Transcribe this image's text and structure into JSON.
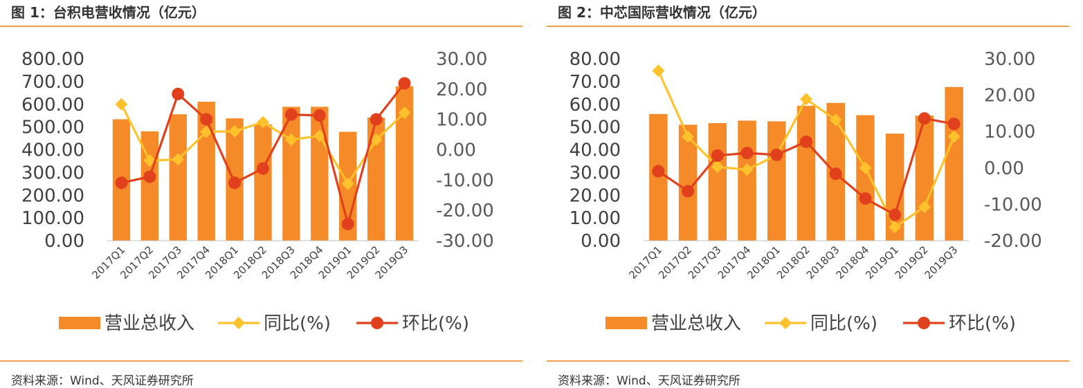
{
  "charts": [
    {
      "fig_title": "图 1：台积电营收情况（亿元）",
      "source": "资料来源：Wind、天风证券研究所",
      "legend": {
        "bar": "营业总收入",
        "yoy": "同比(%)",
        "qoq": "环比(%)"
      }
    },
    {
      "fig_title": "图 2：中芯国际营收情况（亿元）",
      "source": "资料来源：Wind、天风证券研究所",
      "legend": {
        "bar": "营业总收入",
        "yoy": "同比(%)",
        "qoq": "环比(%)"
      }
    }
  ],
  "colors": {
    "bar": "#f58a28",
    "yoy": "#ffc12c",
    "qoq": "#e0401c",
    "rule": "#f0a04b"
  },
  "chart_data": [
    {
      "type": "bar",
      "categories": [
        "2017Q1",
        "2017Q2",
        "2017Q3",
        "2017Q4",
        "2018Q1",
        "2018Q2",
        "2018Q3",
        "2018Q4",
        "2019Q1",
        "2019Q2",
        "2019Q3"
      ],
      "series": [
        {
          "name": "营业总收入",
          "type": "bar",
          "axis": "left",
          "values": [
            534,
            481,
            556,
            611,
            538,
            512,
            589,
            589,
            479,
            541,
            679
          ]
        },
        {
          "name": "同比(%)",
          "type": "line",
          "axis": "right",
          "values": [
            15.0,
            -3.6,
            -3.2,
            5.9,
            6.1,
            9.1,
            3.3,
            4.6,
            -11.2,
            3.3,
            12.2
          ]
        },
        {
          "name": "环比(%)",
          "type": "line",
          "axis": "right",
          "values": [
            -10.9,
            -8.9,
            18.4,
            10.0,
            -10.9,
            -6.2,
            11.6,
            11.3,
            -24.5,
            10.0,
            21.9
          ]
        }
      ],
      "y_left": {
        "min": 0,
        "max": 800,
        "ticks": [
          "0.00",
          "100.00",
          "200.00",
          "300.00",
          "400.00",
          "500.00",
          "600.00",
          "700.00",
          "800.00"
        ]
      },
      "y_right": {
        "min": -30,
        "max": 30,
        "ticks": [
          "-30.00",
          "-20.00",
          "-10.00",
          "0.00",
          "10.00",
          "20.00",
          "30.00"
        ]
      },
      "grid": false,
      "legend_position": "bottom"
    },
    {
      "type": "bar",
      "categories": [
        "2017Q1",
        "2017Q2",
        "2017Q3",
        "2017Q4",
        "2018Q1",
        "2018Q2",
        "2018Q3",
        "2018Q4",
        "2019Q1",
        "2019Q2",
        "2019Q3"
      ],
      "series": [
        {
          "name": "营业总收入",
          "type": "bar",
          "axis": "left",
          "values": [
            55.7,
            51.0,
            51.7,
            52.8,
            52.5,
            59.3,
            60.6,
            55.2,
            47.1,
            55.0,
            67.6
          ]
        },
        {
          "name": "同比(%)",
          "type": "line",
          "axis": "right",
          "values": [
            26.7,
            8.6,
            0.3,
            -0.5,
            3.5,
            18.9,
            13.2,
            0.0,
            -16.3,
            -10.7,
            8.6
          ]
        },
        {
          "name": "环比(%)",
          "type": "line",
          "axis": "right",
          "values": [
            -0.9,
            -6.4,
            3.4,
            4.1,
            3.6,
            7.2,
            -1.6,
            -8.4,
            -12.9,
            13.6,
            12.1
          ]
        }
      ],
      "y_left": {
        "min": 0,
        "max": 80,
        "ticks": [
          "0.00",
          "10.00",
          "20.00",
          "30.00",
          "40.00",
          "50.00",
          "60.00",
          "70.00",
          "80.00"
        ]
      },
      "y_right": {
        "min": -20,
        "max": 30,
        "ticks": [
          "-20.00",
          "-10.00",
          "0.00",
          "10.00",
          "20.00",
          "30.00"
        ]
      },
      "grid": false,
      "legend_position": "bottom"
    }
  ]
}
